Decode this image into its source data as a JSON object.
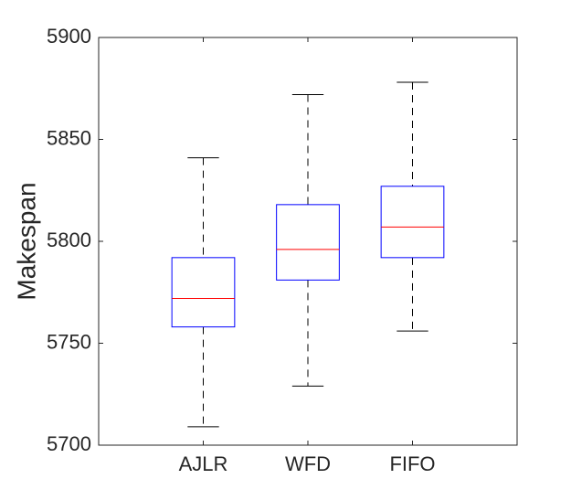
{
  "chart_data": {
    "type": "box",
    "title": "",
    "xlabel": "",
    "ylabel": "Makespan",
    "ylim": [
      5700,
      5900
    ],
    "yticks": [
      5700,
      5750,
      5800,
      5850,
      5900
    ],
    "grid": false,
    "categories": [
      "AJLR",
      "WFD",
      "FIFO"
    ],
    "boxes": [
      {
        "category": "AJLR",
        "whisker_low": 5709,
        "q1": 5758,
        "median": 5772,
        "q3": 5792,
        "whisker_high": 5841
      },
      {
        "category": "WFD",
        "whisker_low": 5729,
        "q1": 5781,
        "median": 5796,
        "q3": 5818,
        "whisker_high": 5872
      },
      {
        "category": "FIFO",
        "whisker_low": 5756,
        "q1": 5792,
        "median": 5807,
        "q3": 5827,
        "whisker_high": 5878
      }
    ],
    "colors": {
      "box": "#0000ff",
      "median": "#ff0000",
      "whisker": "#000000",
      "axis": "#262626"
    }
  }
}
